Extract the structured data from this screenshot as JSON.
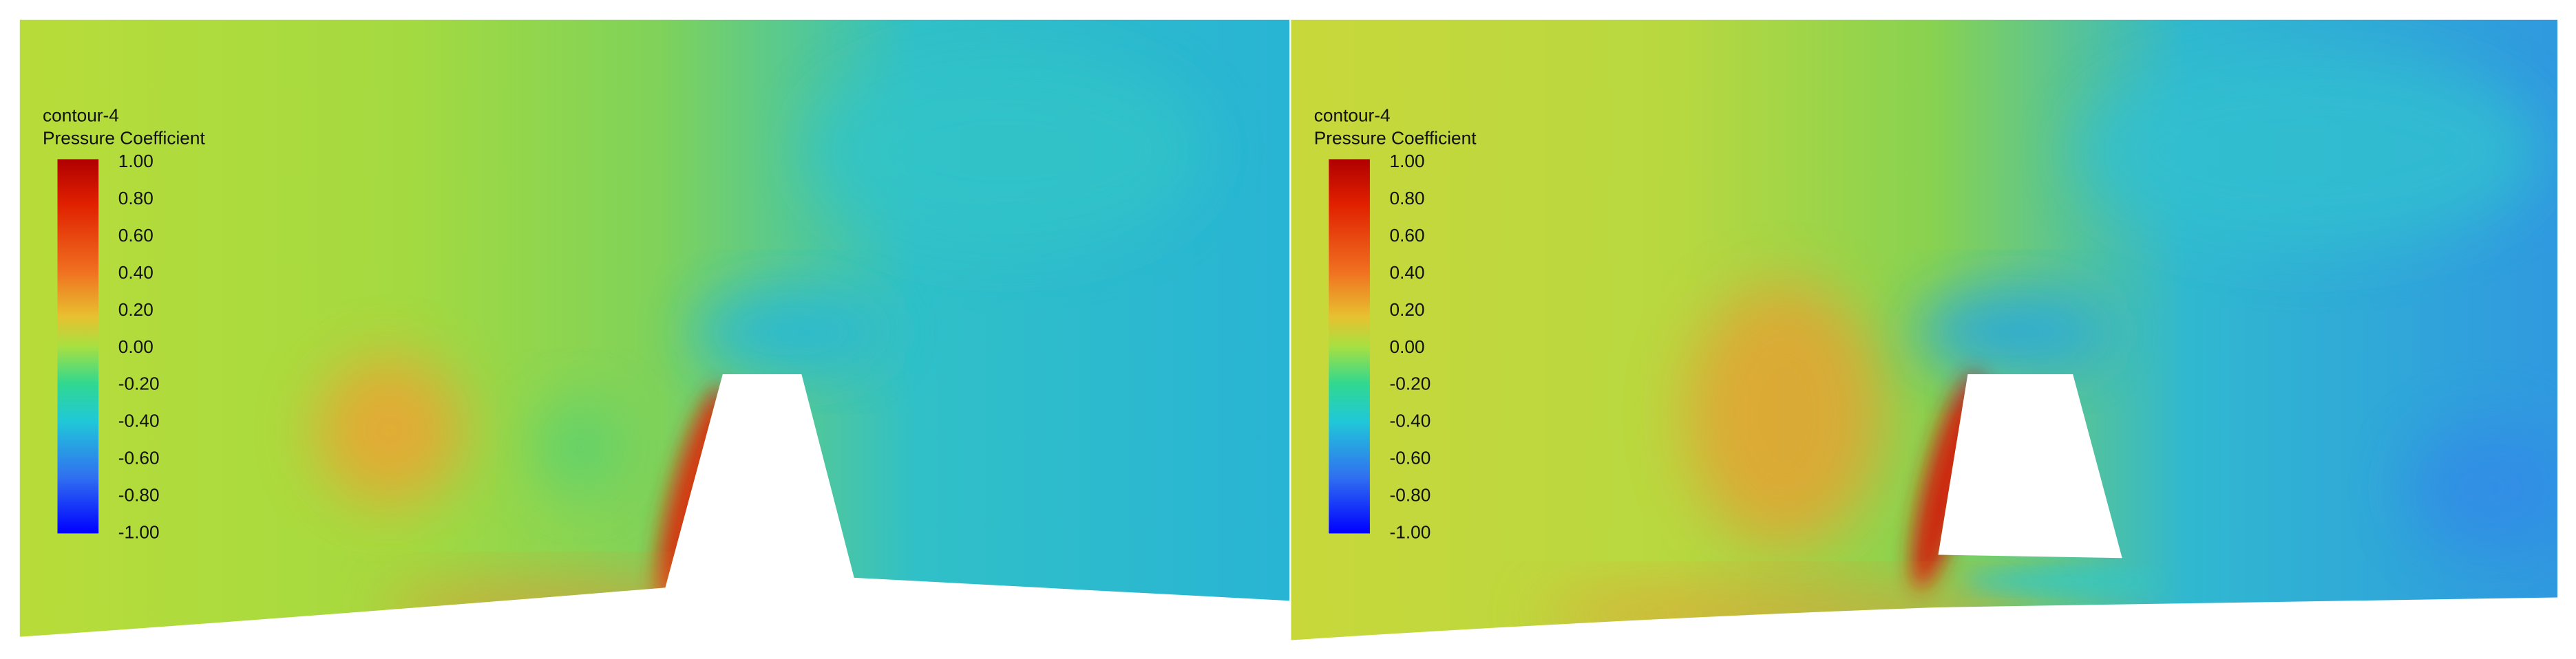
{
  "panels": [
    {
      "legend": {
        "name": "contour-4",
        "title": "Pressure Coefficient",
        "ticks": [
          "1.00",
          "0.80",
          "0.60",
          "0.40",
          "0.20",
          "0.00",
          "-0.20",
          "-0.40",
          "-0.60",
          "-0.80",
          "-1.00"
        ]
      }
    },
    {
      "legend": {
        "name": "contour-4",
        "title": "Pressure Coefficient",
        "ticks": [
          "1.00",
          "0.80",
          "0.60",
          "0.40",
          "0.20",
          "0.00",
          "-0.20",
          "-0.40",
          "-0.60",
          "-0.80",
          "-1.00"
        ]
      }
    }
  ]
}
